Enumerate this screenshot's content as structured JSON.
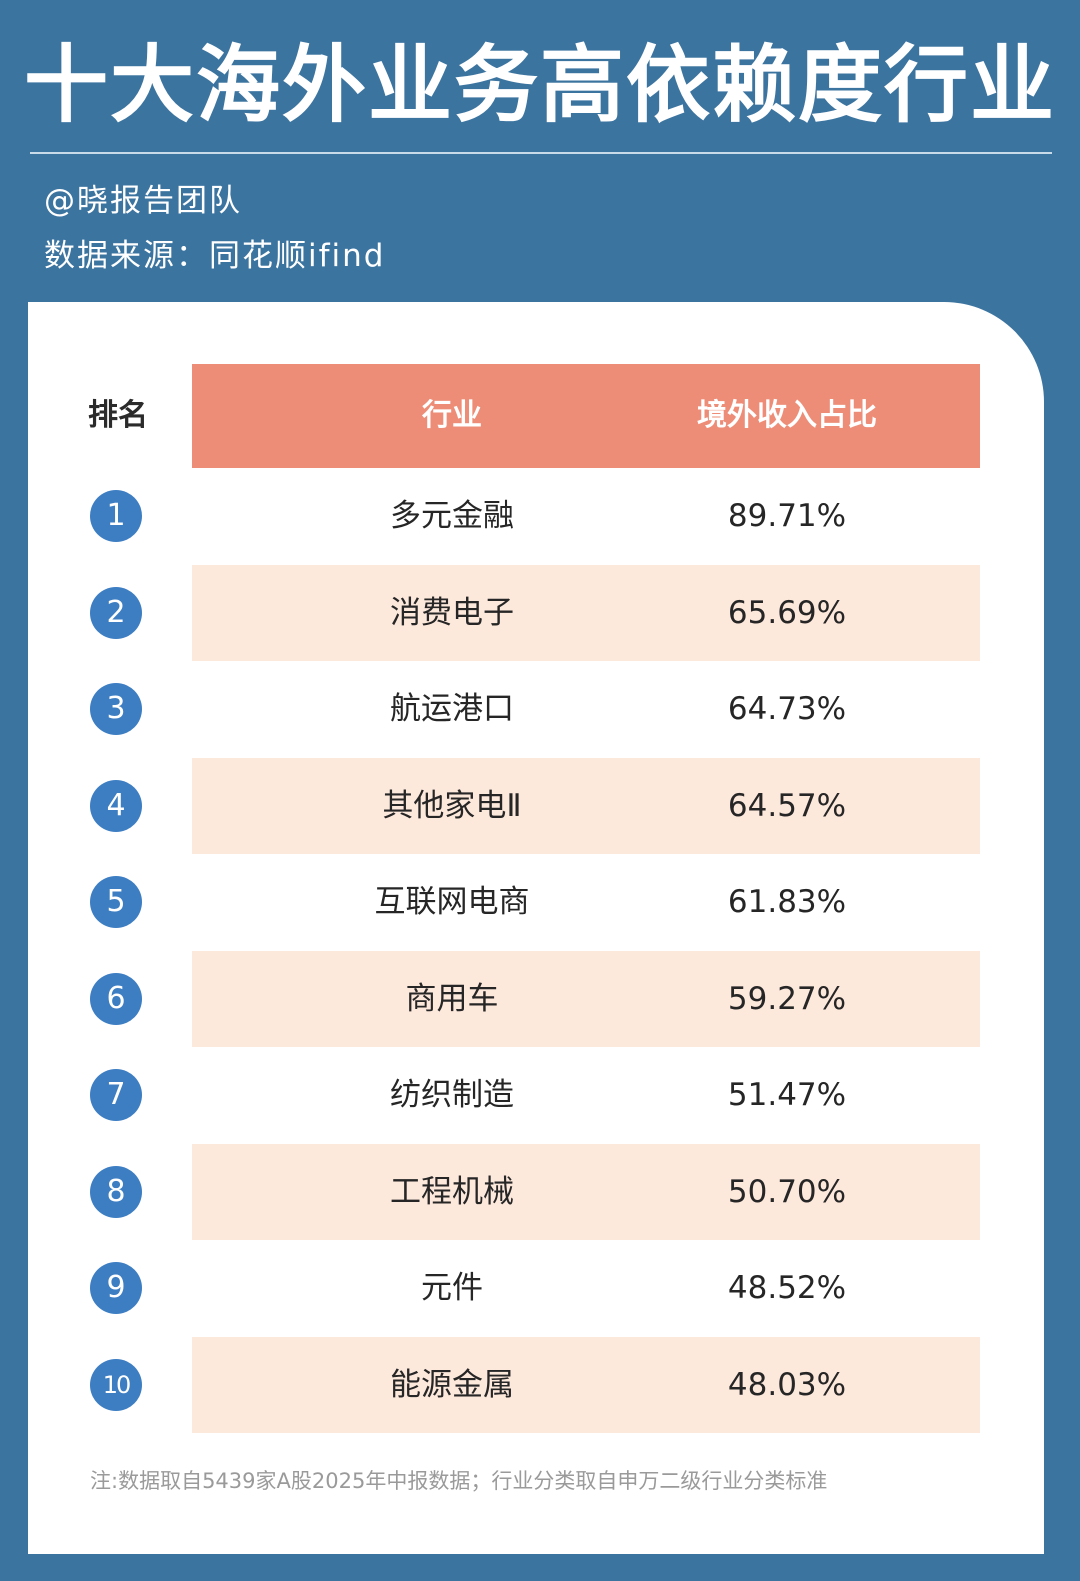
{
  "header": {
    "title": "十大海外业务高依赖度行业",
    "author": "@晓报告团队",
    "source": "数据来源：同花顺ifind"
  },
  "colors": {
    "background": "#3c74a0",
    "header_row": "#ee8d77",
    "stripe_row": "#fde8dc",
    "rank_badge": "#3d7ec3"
  },
  "chart_data": {
    "type": "table",
    "columns": [
      "排名",
      "行业",
      "境外收入占比"
    ],
    "rows": [
      {
        "rank": "1",
        "industry": "多元金融",
        "ratio": "89.71%"
      },
      {
        "rank": "2",
        "industry": "消费电子",
        "ratio": "65.69%"
      },
      {
        "rank": "3",
        "industry": "航运港口",
        "ratio": "64.73%"
      },
      {
        "rank": "4",
        "industry": "其他家电Ⅱ",
        "ratio": "64.57%"
      },
      {
        "rank": "5",
        "industry": "互联网电商",
        "ratio": "61.83%"
      },
      {
        "rank": "6",
        "industry": "商用车",
        "ratio": "59.27%"
      },
      {
        "rank": "7",
        "industry": "纺织制造",
        "ratio": "51.47%"
      },
      {
        "rank": "8",
        "industry": "工程机械",
        "ratio": "50.70%"
      },
      {
        "rank": "9",
        "industry": "元件",
        "ratio": "48.52%"
      },
      {
        "rank": "10",
        "industry": "能源金属",
        "ratio": "48.03%"
      }
    ],
    "note": "注:数据取自5439家A股2025年中报数据；行业分类取自申万二级行业分类标准"
  }
}
